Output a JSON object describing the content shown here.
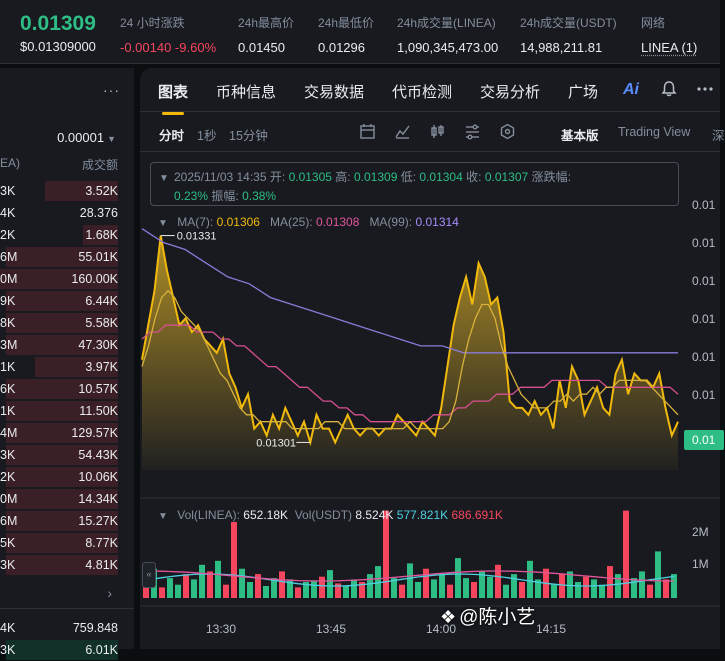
{
  "ticker": {
    "price": "0.01309",
    "price_usd": "$0.01309000",
    "stats": [
      {
        "label": "24 小时涨跌",
        "value": "-0.00140 -9.60%",
        "class": "down"
      },
      {
        "label": "24h最高价",
        "value": "0.01450"
      },
      {
        "label": "24h最低价",
        "value": "0.01296"
      },
      {
        "label": "24h成交量(LINEA)",
        "value": "1,090,345,473.00"
      },
      {
        "label": "24h成交量(USDT)",
        "value": "14,988,211.81"
      },
      {
        "label": "网络",
        "value": "LINEA (1)",
        "class": "net"
      }
    ]
  },
  "orderbook": {
    "more_label": "···",
    "tick_size": "0.00001",
    "col_left": "EA)",
    "col_right": "成交额",
    "asks": [
      {
        "left": "3K",
        "right": "3.52K",
        "depth": 0.62
      },
      {
        "left": "4K",
        "right": "28.376",
        "depth": 0.0
      },
      {
        "left": "2K",
        "right": "1.68K",
        "depth": 0.3
      },
      {
        "left": "6M",
        "right": "55.01K",
        "depth": 0.95
      },
      {
        "left": "0M",
        "right": "160.00K",
        "depth": 1.0
      },
      {
        "left": "9K",
        "right": "6.44K",
        "depth": 0.95
      },
      {
        "left": "8K",
        "right": "5.58K",
        "depth": 0.95
      },
      {
        "left": "3M",
        "right": "47.30K",
        "depth": 0.95
      },
      {
        "left": "1K",
        "right": "3.97K",
        "depth": 0.7
      },
      {
        "left": "6K",
        "right": "10.57K",
        "depth": 0.95
      },
      {
        "left": "1K",
        "right": "11.50K",
        "depth": 0.95
      },
      {
        "left": "4M",
        "right": "129.57K",
        "depth": 0.95
      },
      {
        "left": "3K",
        "right": "54.43K",
        "depth": 0.95
      },
      {
        "left": "2K",
        "right": "10.06K",
        "depth": 0.95
      },
      {
        "left": "0M",
        "right": "14.34K",
        "depth": 0.95
      },
      {
        "left": "6M",
        "right": "15.27K",
        "depth": 0.95
      },
      {
        "left": "5K",
        "right": "8.77K",
        "depth": 0.95
      },
      {
        "left": "3K",
        "right": "4.81K",
        "depth": 0.95
      }
    ],
    "expand_icon": "›",
    "bids": [
      {
        "left": "4K",
        "right": "759.848",
        "depth": 0.0
      },
      {
        "left": "3K",
        "right": "6.01K",
        "depth": 0.95
      }
    ]
  },
  "tabs": {
    "items": [
      "图表",
      "币种信息",
      "交易数据",
      "代币检测",
      "交易分析",
      "广场"
    ],
    "ai_label": "Ai",
    "icons": [
      "bell-icon",
      "more-icon"
    ]
  },
  "toolbar": {
    "intervals": [
      "分时",
      "1秒",
      "15分钟"
    ],
    "tool_icons": [
      "calendar-icon",
      "indicator-icon",
      "candle-type-icon",
      "settings-icon",
      "hex-icon"
    ],
    "views": [
      "基本版",
      "Trading View",
      "深"
    ]
  },
  "info": {
    "date": "2025/11/03 14:35",
    "open_label": "开:",
    "open": "0.01305",
    "high_label": "高:",
    "high": "0.01309",
    "low_label": "低:",
    "low": "0.01304",
    "close_label": "收:",
    "close": "0.01307",
    "change_label": "涨跌幅:",
    "change": "0.23%",
    "amp_label": "振幅:",
    "amp": "0.38%"
  },
  "ma": {
    "ma7_label": "MA(7):",
    "ma7": "0.01306",
    "ma25_label": "MA(25):",
    "ma25": "0.01308",
    "ma99_label": "MA(99):",
    "ma99": "0.01314"
  },
  "volume": {
    "vol_label": "Vol(LINEA):",
    "vol": "652.18K",
    "usdt_label": "Vol(USDT)",
    "usdt": "8.524K",
    "cyan": "577.821K",
    "pink": "686.691K"
  },
  "chart_data": {
    "type": "area",
    "xlabel": "",
    "ylabel": "",
    "x_ticks": [
      "13:30",
      "13:45",
      "14:00",
      "14:15"
    ],
    "y_ticks": [
      "0.01",
      "0.01",
      "0.01",
      "0.01",
      "0.01",
      "0.01"
    ],
    "max_label": "0.01331",
    "min_label": "0.01301",
    "last_price_label": "0.01",
    "vol_ticks": [
      "2M",
      "1M"
    ],
    "ylim": [
      0.01297,
      0.01335
    ],
    "price": [
      0.01313,
      0.01318,
      0.01323,
      0.01331,
      0.01326,
      0.01322,
      0.01318,
      0.01319,
      0.01317,
      0.01318,
      0.01316,
      0.01315,
      0.01314,
      0.01316,
      0.01311,
      0.01309,
      0.01306,
      0.01308,
      0.01303,
      0.01304,
      0.01302,
      0.01305,
      0.01303,
      0.01306,
      0.01304,
      0.01302,
      0.01304,
      0.01301,
      0.01305,
      0.01303,
      0.01303,
      0.01301,
      0.01303,
      0.01305,
      0.01303,
      0.01302,
      0.01303,
      0.01303,
      0.01302,
      0.01303,
      0.01303,
      0.01305,
      0.01304,
      0.01303,
      0.01302,
      0.01304,
      0.01303,
      0.01302,
      0.01306,
      0.01312,
      0.01318,
      0.01322,
      0.01325,
      0.01321,
      0.01327,
      0.01325,
      0.01321,
      0.01322,
      0.01317,
      0.01307,
      0.01306,
      0.01306,
      0.01305,
      0.01307,
      0.01305,
      0.01306,
      0.01303,
      0.0131,
      0.01306,
      0.01312,
      0.0131,
      0.01305,
      0.01307,
      0.01309,
      0.01306,
      0.01305,
      0.01311,
      0.01313,
      0.01308,
      0.01311,
      0.0131,
      0.0131,
      0.01309,
      0.01311,
      0.01306,
      0.01302,
      0.01304
    ],
    "ma7": [
      0.01312,
      0.01315,
      0.01319,
      0.01322,
      0.01323,
      0.01322,
      0.0132,
      0.01319,
      0.01318,
      0.01317,
      0.01315,
      0.01313,
      0.01311,
      0.0131,
      0.01308,
      0.01306,
      0.01305,
      0.01305,
      0.01304,
      0.01304,
      0.01304,
      0.01304,
      0.01304,
      0.01303,
      0.01303,
      0.01303,
      0.01303,
      0.01303,
      0.01304,
      0.01304,
      0.01304,
      0.01303,
      0.01303,
      0.01303,
      0.01303,
      0.01303,
      0.01303,
      0.01303,
      0.01303,
      0.01303,
      0.01303,
      0.01304,
      0.01303,
      0.01303,
      0.01303,
      0.01303,
      0.01303,
      0.01304,
      0.01307,
      0.01312,
      0.01316,
      0.01319,
      0.01321,
      0.01321,
      0.01319,
      0.01315,
      0.01312,
      0.0131,
      0.01308,
      0.01307,
      0.01306,
      0.01306,
      0.01306,
      0.01307,
      0.01307,
      0.01308,
      0.01307,
      0.01308,
      0.01308,
      0.01309,
      0.01308,
      0.01309,
      0.01309,
      0.0131,
      0.0131,
      0.0131,
      0.0131,
      0.0131,
      0.01309,
      0.01308,
      0.01307,
      0.01306,
      0.01305
    ],
    "ma25": [
      0.01316,
      0.01317,
      0.01317,
      0.01318,
      0.01318,
      0.01318,
      0.01318,
      0.01317,
      0.01317,
      0.01317,
      0.01316,
      0.01316,
      0.01315,
      0.01315,
      0.01314,
      0.01313,
      0.01312,
      0.01312,
      0.01311,
      0.0131,
      0.01309,
      0.01309,
      0.01308,
      0.01307,
      0.01307,
      0.01306,
      0.01306,
      0.01305,
      0.01305,
      0.01304,
      0.01304,
      0.01304,
      0.01304,
      0.01304,
      0.01304,
      0.01304,
      0.01304,
      0.01305,
      0.01305,
      0.01305,
      0.01306,
      0.01306,
      0.01307,
      0.01307,
      0.01307,
      0.01308,
      0.01308,
      0.01308,
      0.01309,
      0.01309,
      0.01309,
      0.01309,
      0.0131,
      0.0131,
      0.0131,
      0.0131,
      0.0131,
      0.0131,
      0.0131,
      0.01309,
      0.01309,
      0.01309,
      0.01309,
      0.01309,
      0.01309,
      0.01309,
      0.01309,
      0.01309,
      0.01308
    ],
    "ma99": [
      0.01332,
      0.0133,
      0.01329,
      0.01327,
      0.01325,
      0.01324,
      0.01322,
      0.01321,
      0.0132,
      0.01319,
      0.01318,
      0.01317,
      0.01316,
      0.01315,
      0.01315,
      0.01314,
      0.01314,
      0.01314,
      0.01314,
      0.01314,
      0.01314,
      0.01314,
      0.01314,
      0.01314,
      0.01314,
      0.01314
    ]
  }
}
